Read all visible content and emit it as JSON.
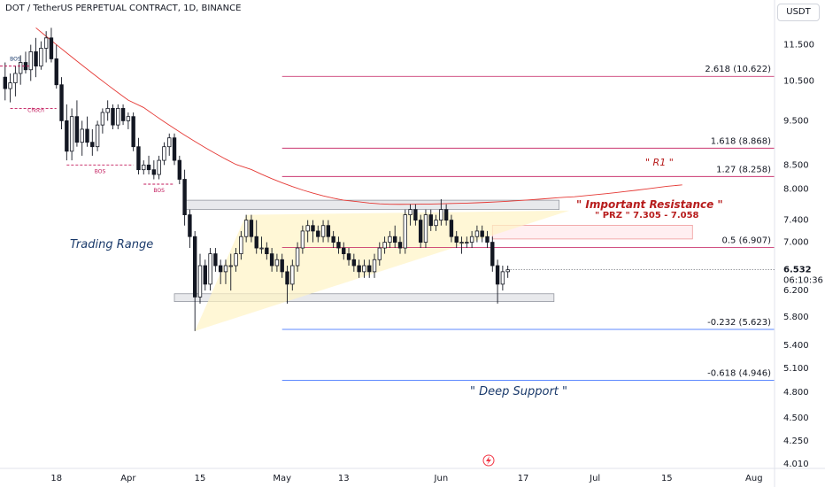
{
  "header": {
    "title": "DOT / TetherUS PERPETUAL CONTRACT, 1D, BINANCE",
    "currency": "USDT"
  },
  "chart_data": {
    "type": "candlestick",
    "symbol": "DOT / TetherUS PERPETUAL CONTRACT",
    "timeframe": "1D",
    "exchange": "BINANCE",
    "y_scale": "log",
    "ylim": [
      4.0,
      12.2
    ],
    "x_start": "2023-03-07",
    "x_end": "2023-08-05",
    "y_ticks": [
      "11.500",
      "10.500",
      "9.500",
      "8.500",
      "8.000",
      "7.400",
      "7.000",
      "6.200",
      "5.800",
      "5.400",
      "5.100",
      "4.800",
      "4.500",
      "4.250",
      "4.010"
    ],
    "y_tick_values": [
      11.5,
      10.5,
      9.5,
      8.5,
      8.0,
      7.4,
      7.0,
      6.2,
      5.8,
      5.4,
      5.1,
      4.8,
      4.5,
      4.25,
      4.01
    ],
    "x_ticks": [
      {
        "label": "18",
        "date": "2023-03-18"
      },
      {
        "label": "Apr",
        "date": "2023-04-01"
      },
      {
        "label": "15",
        "date": "2023-04-15"
      },
      {
        "label": "May",
        "date": "2023-05-01"
      },
      {
        "label": "13",
        "date": "2023-05-13"
      },
      {
        "label": "Jun",
        "date": "2023-06-01"
      },
      {
        "label": "17",
        "date": "2023-06-17"
      },
      {
        "label": "Jul",
        "date": "2023-07-01"
      },
      {
        "label": "15",
        "date": "2023-07-15"
      },
      {
        "label": "Aug",
        "date": "2023-08-01"
      }
    ],
    "current_price": {
      "label": "6.532",
      "value": 6.532,
      "countdown": "06:10:36"
    },
    "candles": [
      {
        "t": "2023-03-08",
        "o": 10.6,
        "h": 11.0,
        "l": 10.0,
        "c": 10.3
      },
      {
        "t": "2023-03-09",
        "o": 10.3,
        "h": 10.7,
        "l": 9.95,
        "c": 10.45
      },
      {
        "t": "2023-03-10",
        "o": 10.45,
        "h": 10.9,
        "l": 10.1,
        "c": 10.7
      },
      {
        "t": "2023-03-11",
        "o": 10.7,
        "h": 11.2,
        "l": 10.4,
        "c": 11.0
      },
      {
        "t": "2023-03-12",
        "o": 11.0,
        "h": 11.3,
        "l": 10.7,
        "c": 10.8
      },
      {
        "t": "2023-03-13",
        "o": 10.8,
        "h": 11.5,
        "l": 10.5,
        "c": 11.3
      },
      {
        "t": "2023-03-14",
        "o": 11.3,
        "h": 11.7,
        "l": 10.6,
        "c": 10.9
      },
      {
        "t": "2023-03-15",
        "o": 10.9,
        "h": 11.6,
        "l": 10.8,
        "c": 11.4
      },
      {
        "t": "2023-03-16",
        "o": 11.4,
        "h": 11.9,
        "l": 11.0,
        "c": 11.7
      },
      {
        "t": "2023-03-17",
        "o": 11.7,
        "h": 12.0,
        "l": 11.0,
        "c": 11.1
      },
      {
        "t": "2023-03-18",
        "o": 11.1,
        "h": 11.5,
        "l": 10.3,
        "c": 10.4
      },
      {
        "t": "2023-03-19",
        "o": 10.4,
        "h": 10.6,
        "l": 9.3,
        "c": 9.5
      },
      {
        "t": "2023-03-20",
        "o": 9.5,
        "h": 9.9,
        "l": 8.6,
        "c": 8.8
      },
      {
        "t": "2023-03-21",
        "o": 8.8,
        "h": 9.8,
        "l": 8.6,
        "c": 9.6
      },
      {
        "t": "2023-03-22",
        "o": 9.6,
        "h": 10.0,
        "l": 8.9,
        "c": 9.0
      },
      {
        "t": "2023-03-23",
        "o": 9.0,
        "h": 9.5,
        "l": 8.7,
        "c": 9.3
      },
      {
        "t": "2023-03-24",
        "o": 9.3,
        "h": 9.6,
        "l": 8.9,
        "c": 9.0
      },
      {
        "t": "2023-03-25",
        "o": 9.0,
        "h": 9.3,
        "l": 8.7,
        "c": 8.9
      },
      {
        "t": "2023-03-26",
        "o": 8.9,
        "h": 9.5,
        "l": 8.8,
        "c": 9.4
      },
      {
        "t": "2023-03-27",
        "o": 9.4,
        "h": 9.8,
        "l": 9.2,
        "c": 9.7
      },
      {
        "t": "2023-03-28",
        "o": 9.7,
        "h": 10.0,
        "l": 9.5,
        "c": 9.8
      },
      {
        "t": "2023-03-29",
        "o": 9.8,
        "h": 9.9,
        "l": 9.3,
        "c": 9.4
      },
      {
        "t": "2023-03-30",
        "o": 9.4,
        "h": 9.9,
        "l": 9.3,
        "c": 9.8
      },
      {
        "t": "2023-03-31",
        "o": 9.8,
        "h": 9.9,
        "l": 9.4,
        "c": 9.5
      },
      {
        "t": "2023-04-01",
        "o": 9.5,
        "h": 9.7,
        "l": 9.3,
        "c": 9.6
      },
      {
        "t": "2023-04-02",
        "o": 9.6,
        "h": 9.7,
        "l": 8.8,
        "c": 8.9
      },
      {
        "t": "2023-04-03",
        "o": 8.9,
        "h": 9.1,
        "l": 8.3,
        "c": 8.4
      },
      {
        "t": "2023-04-04",
        "o": 8.4,
        "h": 8.6,
        "l": 8.3,
        "c": 8.5
      },
      {
        "t": "2023-04-05",
        "o": 8.5,
        "h": 8.7,
        "l": 8.3,
        "c": 8.4
      },
      {
        "t": "2023-04-06",
        "o": 8.4,
        "h": 8.6,
        "l": 8.2,
        "c": 8.3
      },
      {
        "t": "2023-04-07",
        "o": 8.3,
        "h": 8.7,
        "l": 8.2,
        "c": 8.6
      },
      {
        "t": "2023-04-08",
        "o": 8.6,
        "h": 9.0,
        "l": 8.5,
        "c": 8.9
      },
      {
        "t": "2023-04-09",
        "o": 8.9,
        "h": 9.2,
        "l": 8.7,
        "c": 9.1
      },
      {
        "t": "2023-04-10",
        "o": 9.1,
        "h": 9.2,
        "l": 8.5,
        "c": 8.6
      },
      {
        "t": "2023-04-11",
        "o": 8.6,
        "h": 8.7,
        "l": 8.1,
        "c": 8.2
      },
      {
        "t": "2023-04-12",
        "o": 8.2,
        "h": 8.4,
        "l": 7.3,
        "c": 7.5
      },
      {
        "t": "2023-04-13",
        "o": 7.5,
        "h": 7.6,
        "l": 6.9,
        "c": 7.1
      },
      {
        "t": "2023-04-14",
        "o": 7.1,
        "h": 7.2,
        "l": 5.6,
        "c": 6.1
      },
      {
        "t": "2023-04-15",
        "o": 6.1,
        "h": 6.8,
        "l": 6.0,
        "c": 6.6
      },
      {
        "t": "2023-04-16",
        "o": 6.6,
        "h": 6.7,
        "l": 6.2,
        "c": 6.3
      },
      {
        "t": "2023-04-17",
        "o": 6.3,
        "h": 6.9,
        "l": 6.2,
        "c": 6.8
      },
      {
        "t": "2023-04-18",
        "o": 6.8,
        "h": 6.9,
        "l": 6.5,
        "c": 6.6
      },
      {
        "t": "2023-04-19",
        "o": 6.6,
        "h": 6.7,
        "l": 6.3,
        "c": 6.5
      },
      {
        "t": "2023-04-20",
        "o": 6.5,
        "h": 6.7,
        "l": 6.3,
        "c": 6.6
      },
      {
        "t": "2023-04-21",
        "o": 6.6,
        "h": 6.8,
        "l": 6.2,
        "c": 6.6
      },
      {
        "t": "2023-04-22",
        "o": 6.6,
        "h": 6.9,
        "l": 6.5,
        "c": 6.8
      },
      {
        "t": "2023-04-23",
        "o": 6.8,
        "h": 7.2,
        "l": 6.7,
        "c": 7.1
      },
      {
        "t": "2023-04-24",
        "o": 7.1,
        "h": 7.5,
        "l": 7.0,
        "c": 7.4
      },
      {
        "t": "2023-04-25",
        "o": 7.4,
        "h": 7.5,
        "l": 7.0,
        "c": 7.1
      },
      {
        "t": "2023-04-26",
        "o": 7.1,
        "h": 7.4,
        "l": 6.8,
        "c": 6.9
      },
      {
        "t": "2023-04-27",
        "o": 6.9,
        "h": 7.1,
        "l": 6.8,
        "c": 6.9
      },
      {
        "t": "2023-04-28",
        "o": 6.9,
        "h": 7.0,
        "l": 6.7,
        "c": 6.8
      },
      {
        "t": "2023-04-29",
        "o": 6.8,
        "h": 6.9,
        "l": 6.5,
        "c": 6.6
      },
      {
        "t": "2023-04-30",
        "o": 6.6,
        "h": 6.8,
        "l": 6.5,
        "c": 6.7
      },
      {
        "t": "2023-05-01",
        "o": 6.7,
        "h": 6.8,
        "l": 6.4,
        "c": 6.5
      },
      {
        "t": "2023-05-02",
        "o": 6.5,
        "h": 6.6,
        "l": 6.0,
        "c": 6.3
      },
      {
        "t": "2023-05-03",
        "o": 6.3,
        "h": 6.7,
        "l": 6.2,
        "c": 6.6
      },
      {
        "t": "2023-05-04",
        "o": 6.6,
        "h": 7.0,
        "l": 6.5,
        "c": 6.9
      },
      {
        "t": "2023-05-05",
        "o": 6.9,
        "h": 7.3,
        "l": 6.8,
        "c": 7.2
      },
      {
        "t": "2023-05-06",
        "o": 7.2,
        "h": 7.4,
        "l": 7.0,
        "c": 7.3
      },
      {
        "t": "2023-05-07",
        "o": 7.3,
        "h": 7.4,
        "l": 7.0,
        "c": 7.2
      },
      {
        "t": "2023-05-08",
        "o": 7.2,
        "h": 7.3,
        "l": 7.0,
        "c": 7.1
      },
      {
        "t": "2023-05-09",
        "o": 7.1,
        "h": 7.4,
        "l": 7.0,
        "c": 7.3
      },
      {
        "t": "2023-05-10",
        "o": 7.3,
        "h": 7.4,
        "l": 7.0,
        "c": 7.1
      },
      {
        "t": "2023-05-11",
        "o": 7.1,
        "h": 7.2,
        "l": 6.9,
        "c": 7.0
      },
      {
        "t": "2023-05-12",
        "o": 7.0,
        "h": 7.1,
        "l": 6.8,
        "c": 6.9
      },
      {
        "t": "2023-05-13",
        "o": 6.9,
        "h": 7.0,
        "l": 6.7,
        "c": 6.8
      },
      {
        "t": "2023-05-14",
        "o": 6.8,
        "h": 6.9,
        "l": 6.6,
        "c": 6.7
      },
      {
        "t": "2023-05-15",
        "o": 6.7,
        "h": 6.8,
        "l": 6.5,
        "c": 6.6
      },
      {
        "t": "2023-05-16",
        "o": 6.6,
        "h": 6.7,
        "l": 6.4,
        "c": 6.5
      },
      {
        "t": "2023-05-17",
        "o": 6.5,
        "h": 6.7,
        "l": 6.4,
        "c": 6.6
      },
      {
        "t": "2023-05-18",
        "o": 6.6,
        "h": 6.7,
        "l": 6.4,
        "c": 6.5
      },
      {
        "t": "2023-05-19",
        "o": 6.5,
        "h": 6.8,
        "l": 6.4,
        "c": 6.7
      },
      {
        "t": "2023-05-20",
        "o": 6.7,
        "h": 7.0,
        "l": 6.6,
        "c": 6.9
      },
      {
        "t": "2023-05-21",
        "o": 6.9,
        "h": 7.1,
        "l": 6.8,
        "c": 7.0
      },
      {
        "t": "2023-05-22",
        "o": 7.0,
        "h": 7.2,
        "l": 6.9,
        "c": 7.1
      },
      {
        "t": "2023-05-23",
        "o": 7.1,
        "h": 7.3,
        "l": 6.9,
        "c": 7.0
      },
      {
        "t": "2023-05-24",
        "o": 7.0,
        "h": 7.1,
        "l": 6.8,
        "c": 6.9
      },
      {
        "t": "2023-05-25",
        "o": 6.9,
        "h": 7.6,
        "l": 6.8,
        "c": 7.5
      },
      {
        "t": "2023-05-26",
        "o": 7.5,
        "h": 7.7,
        "l": 7.3,
        "c": 7.6
      },
      {
        "t": "2023-05-27",
        "o": 7.6,
        "h": 7.7,
        "l": 7.3,
        "c": 7.4
      },
      {
        "t": "2023-05-28",
        "o": 7.4,
        "h": 7.5,
        "l": 6.9,
        "c": 7.0
      },
      {
        "t": "2023-05-29",
        "o": 7.0,
        "h": 7.6,
        "l": 6.9,
        "c": 7.5
      },
      {
        "t": "2023-05-30",
        "o": 7.5,
        "h": 7.6,
        "l": 7.2,
        "c": 7.3
      },
      {
        "t": "2023-05-31",
        "o": 7.3,
        "h": 7.5,
        "l": 7.2,
        "c": 7.4
      },
      {
        "t": "2023-06-01",
        "o": 7.4,
        "h": 7.8,
        "l": 7.3,
        "c": 7.6
      },
      {
        "t": "2023-06-02",
        "o": 7.6,
        "h": 7.7,
        "l": 7.3,
        "c": 7.4
      },
      {
        "t": "2023-06-03",
        "o": 7.4,
        "h": 7.5,
        "l": 7.0,
        "c": 7.1
      },
      {
        "t": "2023-06-04",
        "o": 7.1,
        "h": 7.2,
        "l": 6.9,
        "c": 7.0
      },
      {
        "t": "2023-06-05",
        "o": 7.0,
        "h": 7.1,
        "l": 6.8,
        "c": 7.0
      },
      {
        "t": "2023-06-06",
        "o": 7.0,
        "h": 7.1,
        "l": 6.9,
        "c": 7.0
      },
      {
        "t": "2023-06-07",
        "o": 7.0,
        "h": 7.2,
        "l": 6.9,
        "c": 7.1
      },
      {
        "t": "2023-06-08",
        "o": 7.1,
        "h": 7.3,
        "l": 7.0,
        "c": 7.2
      },
      {
        "t": "2023-06-09",
        "o": 7.2,
        "h": 7.3,
        "l": 7.0,
        "c": 7.1
      },
      {
        "t": "2023-06-10",
        "o": 7.1,
        "h": 7.2,
        "l": 6.9,
        "c": 7.0
      },
      {
        "t": "2023-06-11",
        "o": 7.0,
        "h": 7.1,
        "l": 6.5,
        "c": 6.6
      },
      {
        "t": "2023-06-12",
        "o": 6.6,
        "h": 6.7,
        "l": 6.0,
        "c": 6.3
      },
      {
        "t": "2023-06-13",
        "o": 6.3,
        "h": 6.6,
        "l": 6.2,
        "c": 6.5
      },
      {
        "t": "2023-06-14",
        "o": 6.5,
        "h": 6.6,
        "l": 6.4,
        "c": 6.532
      }
    ],
    "fib_levels": [
      {
        "label": "2.618 (10.622)",
        "value": 10.622
      },
      {
        "label": "1.618 (8.868)",
        "value": 8.868
      },
      {
        "label": "1.27 (8.258)",
        "value": 8.258
      },
      {
        "label": "0.5 (6.907)",
        "value": 6.907
      },
      {
        "label": "-0.232 (5.623)",
        "value": 5.623
      },
      {
        "label": "-0.618 (4.946)",
        "value": 4.946
      }
    ],
    "zones": {
      "resistance_box": [
        7.6,
        7.78
      ],
      "support_box": [
        6.03,
        6.15
      ],
      "prz_box": [
        7.058,
        7.305
      ]
    },
    "annotations": {
      "trading_range": "Trading Range",
      "important_resistance": "\" Important Resistance \"",
      "prz": "\" PRZ \"   7.305 - 7.058",
      "r1": "\" R1 \"",
      "deep_support": "\" Deep Support \"",
      "bos_labels": [
        "BOS",
        "BOS",
        "BOS"
      ],
      "choch_label": "Choch"
    },
    "colors": {
      "up": "#ffffff",
      "down": "#131722",
      "wick": "#131722",
      "fib_red": "#c2185b",
      "fib_blue": "#2962ff",
      "annotation_red": "#b71c1c",
      "annotation_navy": "#1a3a6b",
      "curve": "#e53935",
      "triangle_fill": "#fff3c4",
      "zone_gray": "#d9dbe0",
      "prz_fill": "#ffebee"
    },
    "grid": false,
    "legend": "none"
  }
}
